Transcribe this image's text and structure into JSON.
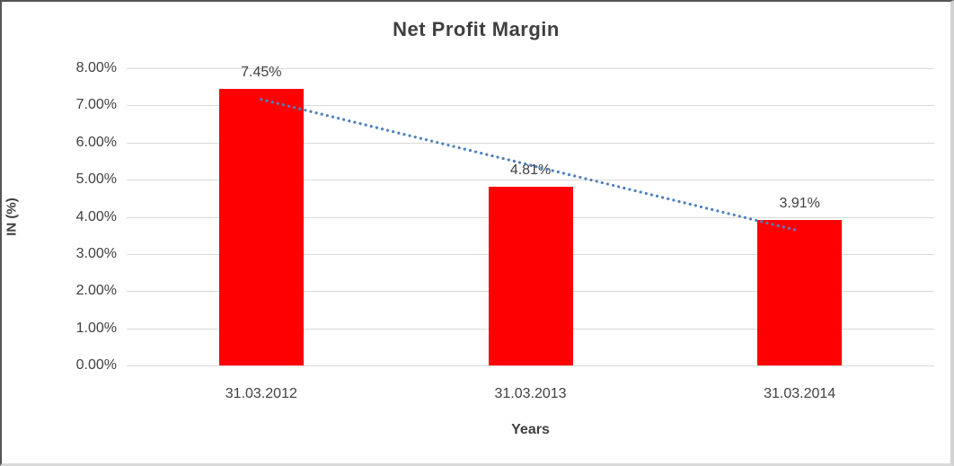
{
  "chart_data": {
    "type": "bar",
    "title": "Net Profit Margin",
    "xlabel": "Years",
    "ylabel": "IN (%)",
    "categories": [
      "31.03.2012",
      "31.03.2013",
      "31.03.2014"
    ],
    "values": [
      7.45,
      4.81,
      3.91
    ],
    "data_labels": [
      "7.45%",
      "4.81%",
      "3.91%"
    ],
    "ylim": [
      0,
      8
    ],
    "ytick_labels_top_to_bottom": [
      "8.00%",
      "7.00%",
      "6.00%",
      "5.00%",
      "4.00%",
      "3.00%",
      "2.00%",
      "1.00%",
      "0.00%"
    ],
    "grid": true,
    "legend": false,
    "trendline": {
      "type": "linear",
      "style": "dotted",
      "start_value": 7.16,
      "end_value": 3.62
    },
    "colors": {
      "bar": "#ff0000",
      "trendline": "#4f81bd",
      "gridline": "#d9d9d9",
      "text": "#404040",
      "title_text": "#3f3f3f"
    }
  }
}
